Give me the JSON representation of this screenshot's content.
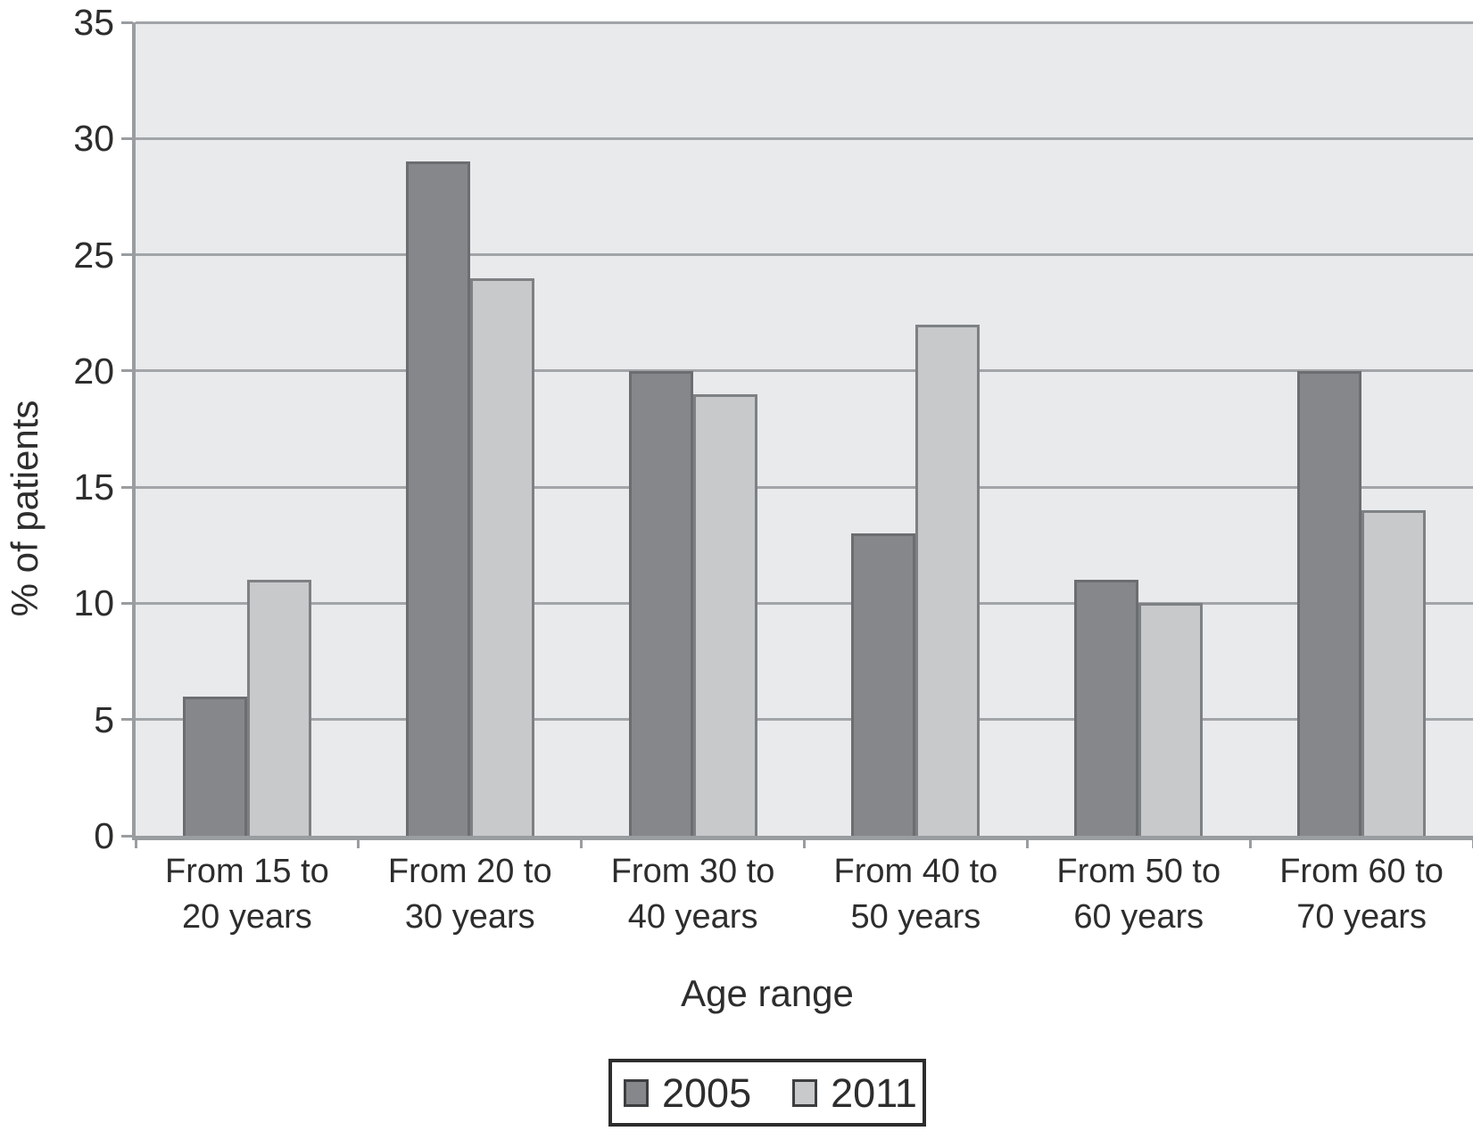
{
  "chart_data": {
    "type": "bar",
    "title": "",
    "xlabel": "Age range",
    "ylabel": "% of patients",
    "ylim": [
      0,
      35
    ],
    "yticks": [
      0,
      5,
      10,
      15,
      20,
      25,
      30,
      35
    ],
    "grid": true,
    "legend_position": "bottom",
    "categories": [
      "From 15 to\n20 years",
      "From 20 to\n30 years",
      "From 30 to\n40 years",
      "From 40 to\n50 years",
      "From 50 to\n60 years",
      "From 60 to\n70 years"
    ],
    "series": [
      {
        "name": "2005",
        "values": [
          6,
          29,
          20,
          13,
          11,
          20
        ],
        "color": "#85878a",
        "border_color": "#6b6d70"
      },
      {
        "name": "2011",
        "values": [
          11,
          24,
          19,
          22,
          10,
          14
        ],
        "color": "#c7c9cb",
        "border_color": "#7e8184"
      }
    ],
    "colors": {
      "plot_background": "#e9eaeb",
      "gridline": "#a2a5a8",
      "axis_line": "#9a9da0",
      "text": "#2d2d2d"
    }
  }
}
